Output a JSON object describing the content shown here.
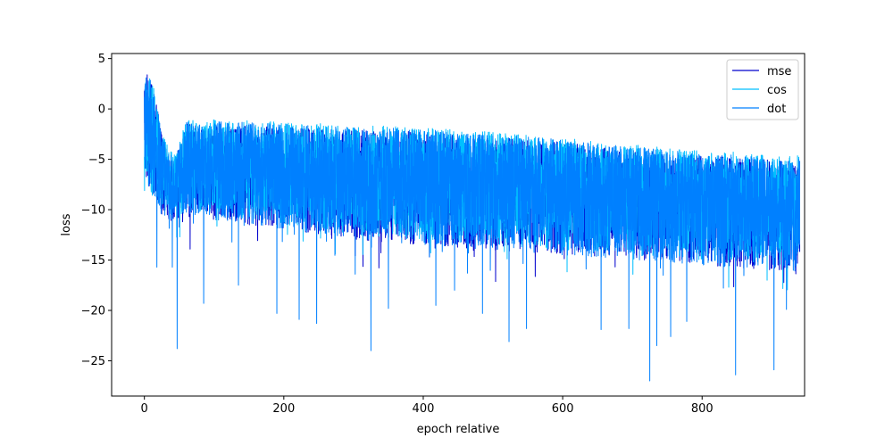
{
  "chart_data": {
    "type": "line",
    "title": "",
    "xlabel": "epoch relative",
    "ylabel": "loss",
    "xlim": [
      -47,
      947
    ],
    "ylim": [
      -28.5,
      5.5
    ],
    "xticks": [
      0,
      200,
      400,
      600,
      800
    ],
    "yticks": [
      5,
      0,
      -5,
      -10,
      -15,
      -20,
      -25
    ],
    "grid": false,
    "legend_position": "upper right",
    "series": [
      {
        "name": "mse",
        "color": "#0000cd",
        "x_range": [
          0,
          940
        ],
        "envelope": {
          "x": [
            0,
            5,
            15,
            25,
            35,
            45,
            60,
            100,
            200,
            300,
            400,
            500,
            600,
            700,
            800,
            900,
            940
          ],
          "upper": [
            3.8,
            3.5,
            1.5,
            -2.5,
            -4.5,
            -4.8,
            -1.5,
            -1.5,
            -1.8,
            -2.0,
            -2.3,
            -2.8,
            -3.3,
            -4.0,
            -4.6,
            -5.0,
            -5.3
          ],
          "lower": [
            -6,
            -8.5,
            -9.5,
            -10.5,
            -11,
            -11.5,
            -10.5,
            -11,
            -12,
            -13,
            -13.5,
            -14,
            -14.5,
            -15,
            -15.5,
            -16,
            -16.2
          ]
        }
      },
      {
        "name": "cos",
        "color": "#00bfff",
        "x_range": [
          0,
          940
        ],
        "envelope": {
          "x": [
            0,
            5,
            15,
            25,
            35,
            45,
            60,
            100,
            200,
            300,
            400,
            500,
            600,
            700,
            800,
            900,
            940
          ],
          "upper": [
            3.8,
            3.6,
            1.8,
            -2.0,
            -4.0,
            -4.5,
            -1.0,
            -1.0,
            -1.3,
            -1.6,
            -1.8,
            -2.3,
            -2.9,
            -3.5,
            -4.1,
            -4.4,
            -4.6
          ],
          "lower": [
            -6,
            -8,
            -9,
            -10,
            -10.5,
            -11,
            -10,
            -10.5,
            -11.5,
            -12.5,
            -13,
            -13.5,
            -14,
            -14.5,
            -15,
            -15.5,
            -15.8
          ]
        }
      },
      {
        "name": "dot",
        "color": "#0080ff",
        "x_range": [
          0,
          940
        ],
        "envelope": {
          "x": [
            0,
            5,
            15,
            25,
            35,
            45,
            60,
            100,
            200,
            300,
            400,
            500,
            600,
            700,
            800,
            900,
            940
          ],
          "upper": [
            3.9,
            3.6,
            1.6,
            -2.3,
            -4.3,
            -4.7,
            -1.2,
            -1.2,
            -1.5,
            -1.8,
            -2.0,
            -2.5,
            -3.0,
            -3.8,
            -4.4,
            -4.8,
            -5.0
          ],
          "lower": [
            -6,
            -8.5,
            -9.5,
            -10.5,
            -11,
            -11.5,
            -10.5,
            -11,
            -12,
            -13,
            -13.5,
            -14,
            -14.5,
            -15,
            -15.5,
            -16,
            -16.2
          ]
        },
        "spikes": [
          {
            "x": 18,
            "y": -15.7
          },
          {
            "x": 40,
            "y": -15.7
          },
          {
            "x": 47,
            "y": -23.8
          },
          {
            "x": 85,
            "y": -19.3
          },
          {
            "x": 135,
            "y": -17.5
          },
          {
            "x": 190,
            "y": -20.3
          },
          {
            "x": 222,
            "y": -20.9
          },
          {
            "x": 247,
            "y": -21.3
          },
          {
            "x": 325,
            "y": -24.0
          },
          {
            "x": 350,
            "y": -19.8
          },
          {
            "x": 418,
            "y": -19.5
          },
          {
            "x": 445,
            "y": -18.0
          },
          {
            "x": 485,
            "y": -20.3
          },
          {
            "x": 523,
            "y": -23.1
          },
          {
            "x": 548,
            "y": -21.8
          },
          {
            "x": 655,
            "y": -21.9
          },
          {
            "x": 695,
            "y": -21.8
          },
          {
            "x": 725,
            "y": -27.0
          },
          {
            "x": 735,
            "y": -23.5
          },
          {
            "x": 755,
            "y": -22.6
          },
          {
            "x": 778,
            "y": -21.1
          },
          {
            "x": 848,
            "y": -26.4
          },
          {
            "x": 903,
            "y": -25.9
          },
          {
            "x": 921,
            "y": -19.9
          }
        ]
      }
    ]
  }
}
